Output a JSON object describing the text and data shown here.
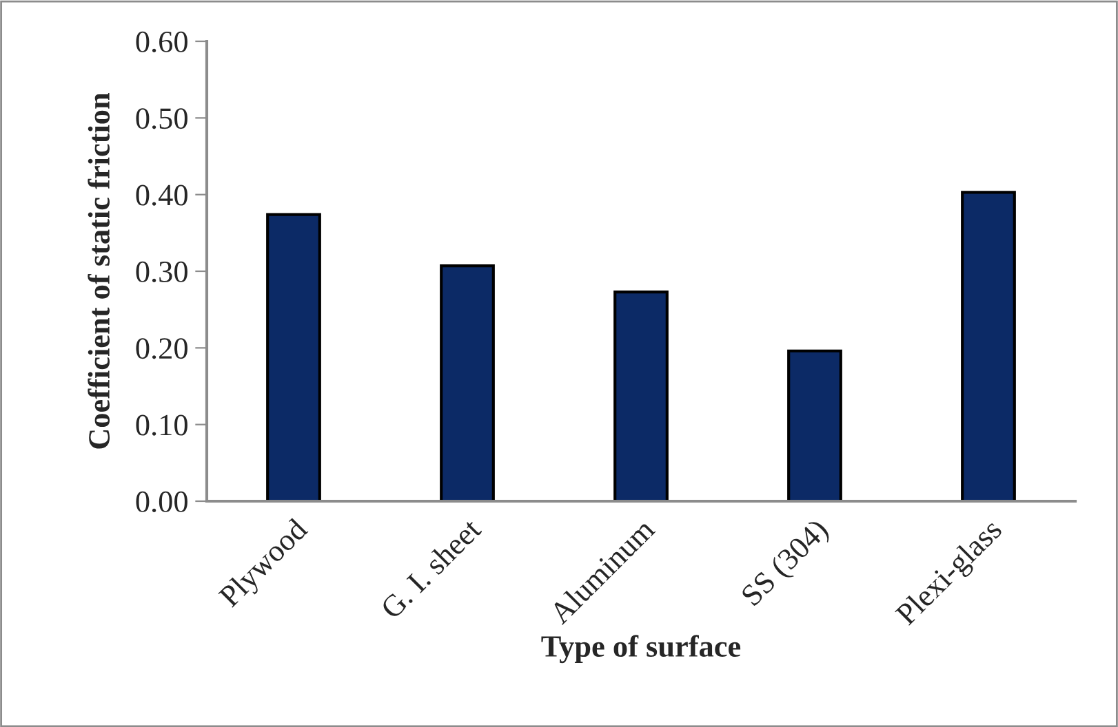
{
  "chart_data": {
    "type": "bar",
    "xlabel": "Type of surface",
    "ylabel": "Coefficient of static friction",
    "categories": [
      "Plywood",
      "G. I. sheet",
      "Aluminum",
      "SS (304)",
      "Plexi-glass"
    ],
    "values": [
      0.374,
      0.307,
      0.273,
      0.196,
      0.403
    ],
    "color": "#0c2a66",
    "ylim": [
      0,
      0.6
    ],
    "yticks": [
      {
        "value": 0,
        "label": "0.00"
      },
      {
        "value": 0.1,
        "label": "0.10"
      },
      {
        "value": 0.2,
        "label": "0.20"
      },
      {
        "value": 0.3,
        "label": "0.30"
      },
      {
        "value": 0.4,
        "label": "0.40"
      },
      {
        "value": 0.5,
        "label": "0.50"
      },
      {
        "value": 0.6,
        "label": "0.60"
      }
    ],
    "grid": false,
    "legend": false
  }
}
